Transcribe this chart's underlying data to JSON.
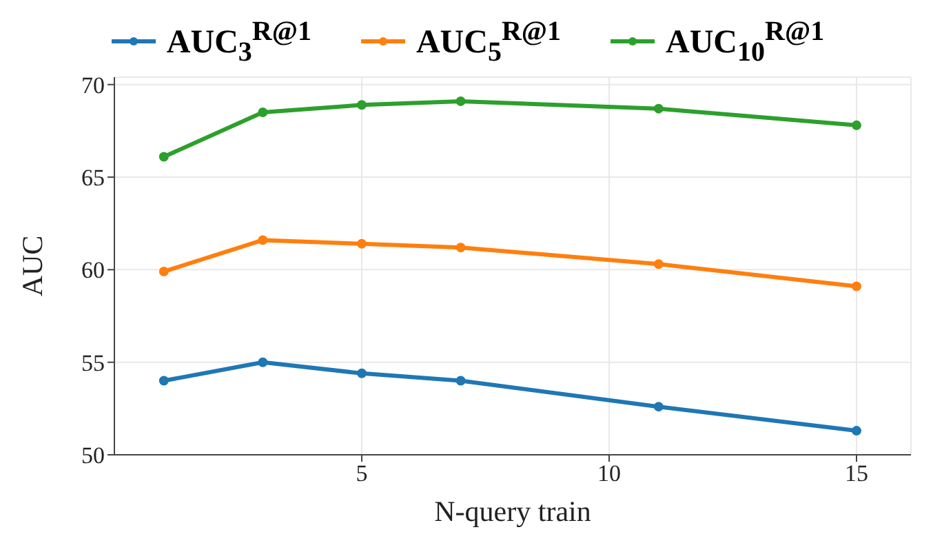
{
  "chart_data": {
    "type": "line",
    "xlabel": "N-query train",
    "ylabel": "AUC",
    "x": [
      1,
      3,
      5,
      7,
      11,
      15
    ],
    "series": [
      {
        "name": "AUC$_{3}$$^{R@1}$",
        "color": "#1f77b4",
        "values": [
          54.0,
          55.0,
          54.4,
          54.0,
          52.6,
          51.3
        ]
      },
      {
        "name": "AUC$_{5}$$^{R@1}$",
        "color": "#ff7f0e",
        "values": [
          59.9,
          61.6,
          61.4,
          61.2,
          60.3,
          59.1
        ]
      },
      {
        "name": "AUC$_{10}$$^{R@1}$",
        "color": "#2ca02c",
        "values": [
          66.1,
          68.5,
          68.9,
          69.1,
          68.7,
          67.8
        ]
      }
    ],
    "xlim": [
      0,
      16.1
    ],
    "xticks": [
      5,
      10,
      15
    ],
    "ylim": [
      50,
      70.4
    ],
    "yticks": [
      50,
      55,
      60,
      65,
      70
    ],
    "grid": true,
    "legend": "top",
    "marker": "circle",
    "line_style": "solid"
  }
}
